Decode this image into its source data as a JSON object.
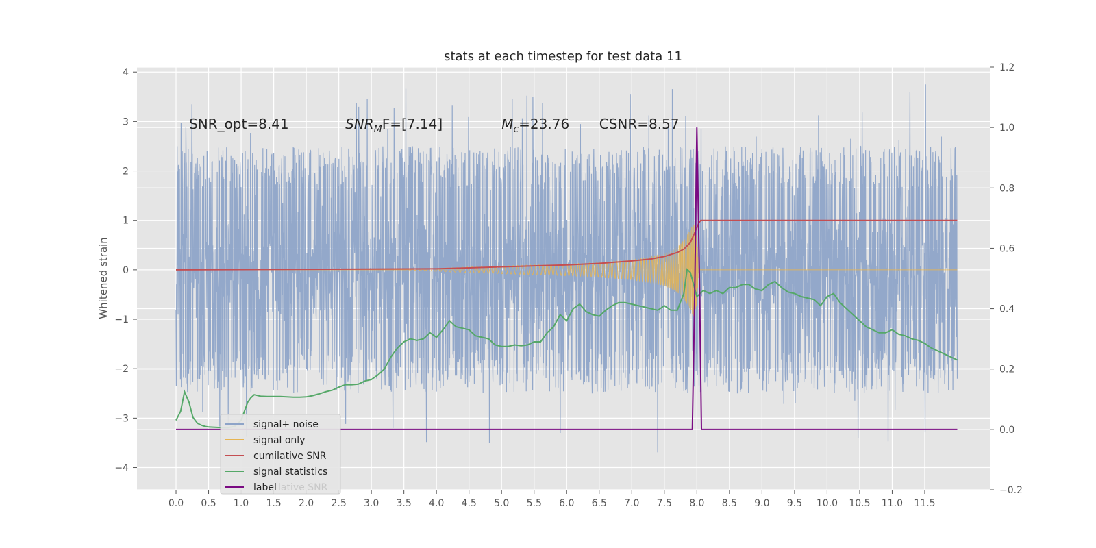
{
  "chart_data": {
    "type": "line",
    "title": "stats at each timestep for test data 11",
    "ylabel": "Whitened strain",
    "xlabel": "",
    "xlim": [
      -0.6,
      12.5
    ],
    "ylim": [
      -4.45,
      4.1
    ],
    "y2lim": [
      -0.2,
      1.2
    ],
    "grid": true,
    "x_ticks": [
      0.0,
      0.5,
      1.0,
      1.5,
      2.0,
      2.5,
      3.0,
      3.5,
      4.0,
      4.5,
      5.0,
      5.5,
      6.0,
      6.5,
      7.0,
      7.5,
      8.0,
      8.5,
      9.0,
      9.5,
      10.0,
      10.5,
      11.0,
      11.5
    ],
    "x_tick_labels": [
      "0.0",
      "0.5",
      "1.0",
      "1.5",
      "2.0",
      "2.5",
      "3.0",
      "3.5",
      "4.0",
      "4.5",
      "5.0",
      "5.5",
      "6.0",
      "6.5",
      "7.0",
      "7.5",
      "8.0",
      "8.5",
      "9.0",
      "9.5",
      "10.0",
      "10.5",
      "11.0",
      "11.5"
    ],
    "y_ticks": [
      4,
      3,
      2,
      1,
      0,
      -1,
      -2,
      -3,
      -4
    ],
    "y_tick_labels": [
      "4",
      "3",
      "2",
      "1",
      "0",
      "−1",
      "−2",
      "−3",
      "−4"
    ],
    "y2_ticks": [
      1.2,
      1.0,
      0.8,
      0.6,
      0.4,
      0.2,
      0.0,
      -0.2
    ],
    "y2_tick_labels": [
      "1.2",
      "1.0",
      "0.8",
      "0.6",
      "0.4",
      "0.2",
      "0.0",
      "−0.2"
    ],
    "annotations": [
      {
        "text": "SNR_opt=8.41",
        "x": 0.2,
        "y": 2.95
      },
      {
        "text": "SNR",
        "sub": "M",
        "suffix": "F=[7.14]",
        "italic": true,
        "x": 2.6,
        "y": 2.95
      },
      {
        "text": "M",
        "sub": "c",
        "suffix": "=23.76",
        "italic": true,
        "x": 5.0,
        "y": 2.95
      },
      {
        "text": "CSNR=8.57",
        "x": 6.5,
        "y": 2.95
      }
    ],
    "series": [
      {
        "name": "signal+ noise",
        "axis": "left",
        "color": "#8ea4c8",
        "x_range": [
          0.0,
          12.0
        ],
        "amplitude_typical": 2.3,
        "amplitude_max": 3.75,
        "amplitude_min": -4.05
      },
      {
        "name": "signal only",
        "axis": "left",
        "color": "#e6b450",
        "envelope": {
          "x": [
            3.5,
            4.5,
            5.0,
            5.5,
            6.0,
            6.5,
            7.0,
            7.3,
            7.5,
            7.7,
            7.8,
            7.9,
            7.95,
            8.0,
            8.02,
            8.05,
            12.0
          ],
          "amp": [
            0.0,
            0.06,
            0.08,
            0.1,
            0.12,
            0.15,
            0.2,
            0.26,
            0.32,
            0.45,
            0.6,
            0.8,
            0.95,
            0.7,
            0.15,
            0.0,
            0.0
          ]
        }
      },
      {
        "name": "cumilative SNR",
        "axis": "left",
        "color": "#c44e52",
        "x": [
          0,
          1,
          2,
          3,
          4,
          4.5,
          5,
          5.5,
          6,
          6.5,
          7,
          7.3,
          7.5,
          7.7,
          7.8,
          7.9,
          7.95,
          8.0,
          8.03,
          8.06,
          12.0
        ],
        "y": [
          0.0,
          0.005,
          0.01,
          0.015,
          0.02,
          0.04,
          0.06,
          0.08,
          0.1,
          0.13,
          0.18,
          0.22,
          0.27,
          0.35,
          0.42,
          0.55,
          0.7,
          0.85,
          0.95,
          1.0,
          1.0
        ]
      },
      {
        "name": "signal statistics",
        "axis": "right",
        "color": "#55a868",
        "x": [
          0.0,
          0.07,
          0.13,
          0.2,
          0.26,
          0.33,
          0.4,
          0.45,
          0.5,
          0.6,
          0.7,
          0.8,
          0.9,
          1.0,
          1.05,
          1.1,
          1.15,
          1.2,
          1.3,
          1.4,
          1.5,
          1.6,
          1.7,
          1.8,
          1.9,
          2.0,
          2.1,
          2.2,
          2.3,
          2.4,
          2.5,
          2.6,
          2.7,
          2.8,
          2.9,
          3.0,
          3.1,
          3.2,
          3.3,
          3.4,
          3.5,
          3.6,
          3.7,
          3.8,
          3.9,
          4.0,
          4.1,
          4.2,
          4.3,
          4.4,
          4.5,
          4.6,
          4.7,
          4.8,
          4.9,
          5.0,
          5.1,
          5.2,
          5.3,
          5.4,
          5.5,
          5.6,
          5.7,
          5.8,
          5.9,
          6.0,
          6.1,
          6.2,
          6.3,
          6.4,
          6.5,
          6.6,
          6.7,
          6.8,
          6.9,
          7.0,
          7.1,
          7.2,
          7.3,
          7.4,
          7.5,
          7.6,
          7.7,
          7.8,
          7.85,
          7.9,
          8.0,
          8.1,
          8.2,
          8.3,
          8.4,
          8.5,
          8.6,
          8.7,
          8.8,
          8.9,
          9.0,
          9.1,
          9.2,
          9.3,
          9.4,
          9.5,
          9.6,
          9.7,
          9.8,
          9.9,
          10.0,
          10.1,
          10.2,
          10.3,
          10.4,
          10.5,
          10.6,
          10.7,
          10.8,
          10.9,
          11.0,
          11.1,
          11.2,
          11.3,
          11.4,
          11.5,
          11.6,
          11.7,
          11.8,
          11.9,
          12.0
        ],
        "y": [
          0.03,
          0.06,
          0.125,
          0.09,
          0.04,
          0.02,
          0.013,
          0.01,
          0.008,
          0.007,
          0.006,
          0.006,
          0.01,
          0.03,
          0.06,
          0.09,
          0.105,
          0.115,
          0.11,
          0.109,
          0.109,
          0.109,
          0.108,
          0.107,
          0.107,
          0.108,
          0.112,
          0.118,
          0.125,
          0.13,
          0.14,
          0.148,
          0.148,
          0.15,
          0.16,
          0.165,
          0.18,
          0.2,
          0.24,
          0.27,
          0.29,
          0.3,
          0.295,
          0.3,
          0.32,
          0.305,
          0.33,
          0.36,
          0.34,
          0.335,
          0.33,
          0.31,
          0.305,
          0.3,
          0.28,
          0.275,
          0.275,
          0.28,
          0.277,
          0.28,
          0.29,
          0.29,
          0.32,
          0.34,
          0.38,
          0.36,
          0.4,
          0.415,
          0.39,
          0.38,
          0.375,
          0.395,
          0.41,
          0.42,
          0.42,
          0.415,
          0.41,
          0.405,
          0.4,
          0.395,
          0.41,
          0.395,
          0.395,
          0.45,
          0.53,
          0.52,
          0.44,
          0.46,
          0.45,
          0.46,
          0.45,
          0.47,
          0.47,
          0.48,
          0.48,
          0.465,
          0.46,
          0.48,
          0.49,
          0.47,
          0.455,
          0.45,
          0.44,
          0.435,
          0.43,
          0.41,
          0.44,
          0.45,
          0.42,
          0.4,
          0.38,
          0.36,
          0.34,
          0.33,
          0.32,
          0.32,
          0.33,
          0.315,
          0.31,
          0.3,
          0.295,
          0.285,
          0.27,
          0.26,
          0.25,
          0.24,
          0.23
        ]
      },
      {
        "name": "label",
        "axis": "right",
        "color": "#7a0a82",
        "x": [
          0.0,
          7.93,
          7.97,
          8.0,
          8.04,
          8.07,
          12.0
        ],
        "y": [
          0.0,
          0.0,
          0.5,
          1.0,
          0.5,
          0.0,
          0.0
        ]
      }
    ],
    "legend": {
      "placement": "lower-left",
      "entries": [
        "signal+ noise",
        "signal only",
        "cumilative SNR",
        "signal statistics",
        "label"
      ],
      "ghost_entries": [
        "cumilative SNR",
        "lative SNR"
      ]
    }
  }
}
